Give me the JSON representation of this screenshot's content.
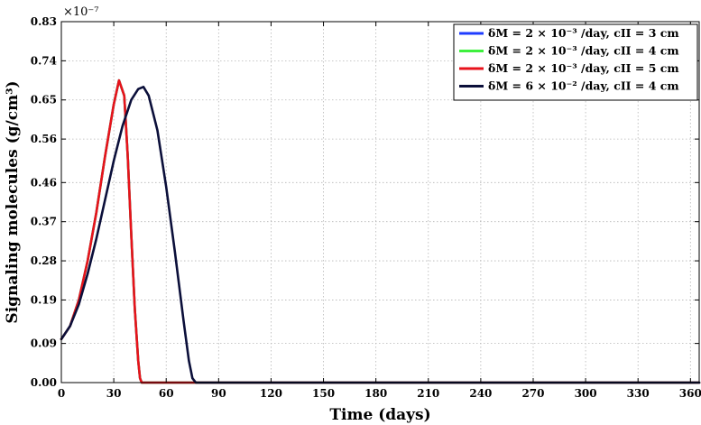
{
  "chart_data": {
    "type": "line",
    "xlabel": "Time (days)",
    "ylabel": "Signaling molecules (g/cm³)",
    "y_exponent_label": "×10⁻⁷",
    "xlim": [
      0,
      365
    ],
    "ylim": [
      0,
      0.83
    ],
    "xticks": [
      0,
      30,
      60,
      90,
      120,
      150,
      180,
      210,
      240,
      270,
      300,
      330,
      360
    ],
    "yticks": [
      0.0,
      0.09,
      0.19,
      0.28,
      0.37,
      0.46,
      0.56,
      0.65,
      0.74,
      0.83
    ],
    "grid": true,
    "legend_position": "top-right",
    "series": [
      {
        "name": "δM = 2 × 10⁻³ /day, cII = 3 cm",
        "color": "#1f3cff",
        "x": [
          0,
          5,
          10,
          15,
          20,
          25,
          30,
          33,
          36,
          38,
          40,
          42,
          44,
          45,
          46,
          60,
          90,
          120,
          180,
          240,
          300,
          365
        ],
        "y": [
          0.1,
          0.13,
          0.19,
          0.28,
          0.39,
          0.52,
          0.64,
          0.695,
          0.66,
          0.52,
          0.34,
          0.17,
          0.05,
          0.01,
          0.0,
          0.0,
          0.0,
          0.0,
          0.0,
          0.0,
          0.0,
          0.0
        ]
      },
      {
        "name": "δM = 2 × 10⁻³ /day, cII = 4 cm",
        "color": "#3ef03e",
        "x": [
          0,
          5,
          10,
          15,
          20,
          25,
          30,
          33,
          36,
          38,
          40,
          42,
          44,
          45,
          46,
          60,
          90,
          120,
          180,
          240,
          300,
          365
        ],
        "y": [
          0.1,
          0.13,
          0.19,
          0.28,
          0.39,
          0.52,
          0.64,
          0.695,
          0.66,
          0.52,
          0.34,
          0.17,
          0.05,
          0.01,
          0.0,
          0.0,
          0.0,
          0.0,
          0.0,
          0.0,
          0.0,
          0.0
        ]
      },
      {
        "name": "δM = 2 × 10⁻³ /day, cII = 5 cm",
        "color": "#e8121b",
        "x": [
          0,
          5,
          10,
          15,
          20,
          25,
          30,
          33,
          36,
          38,
          40,
          42,
          44,
          45,
          46,
          60,
          90,
          120,
          180,
          240,
          300,
          365
        ],
        "y": [
          0.1,
          0.13,
          0.19,
          0.28,
          0.39,
          0.52,
          0.64,
          0.695,
          0.66,
          0.52,
          0.34,
          0.17,
          0.05,
          0.01,
          0.0,
          0.0,
          0.0,
          0.0,
          0.0,
          0.0,
          0.0,
          0.0
        ]
      },
      {
        "name": "δM = 6 × 10⁻² /day, cII = 4 cm",
        "color": "#0b0f3a",
        "x": [
          0,
          5,
          10,
          15,
          20,
          25,
          30,
          35,
          40,
          44,
          47,
          50,
          55,
          60,
          65,
          70,
          73,
          75,
          77,
          90,
          120,
          180,
          240,
          300,
          365
        ],
        "y": [
          0.1,
          0.13,
          0.18,
          0.25,
          0.33,
          0.42,
          0.51,
          0.59,
          0.65,
          0.675,
          0.68,
          0.66,
          0.58,
          0.45,
          0.3,
          0.14,
          0.05,
          0.01,
          0.0,
          0.0,
          0.0,
          0.0,
          0.0,
          0.0,
          0.0
        ]
      }
    ]
  }
}
